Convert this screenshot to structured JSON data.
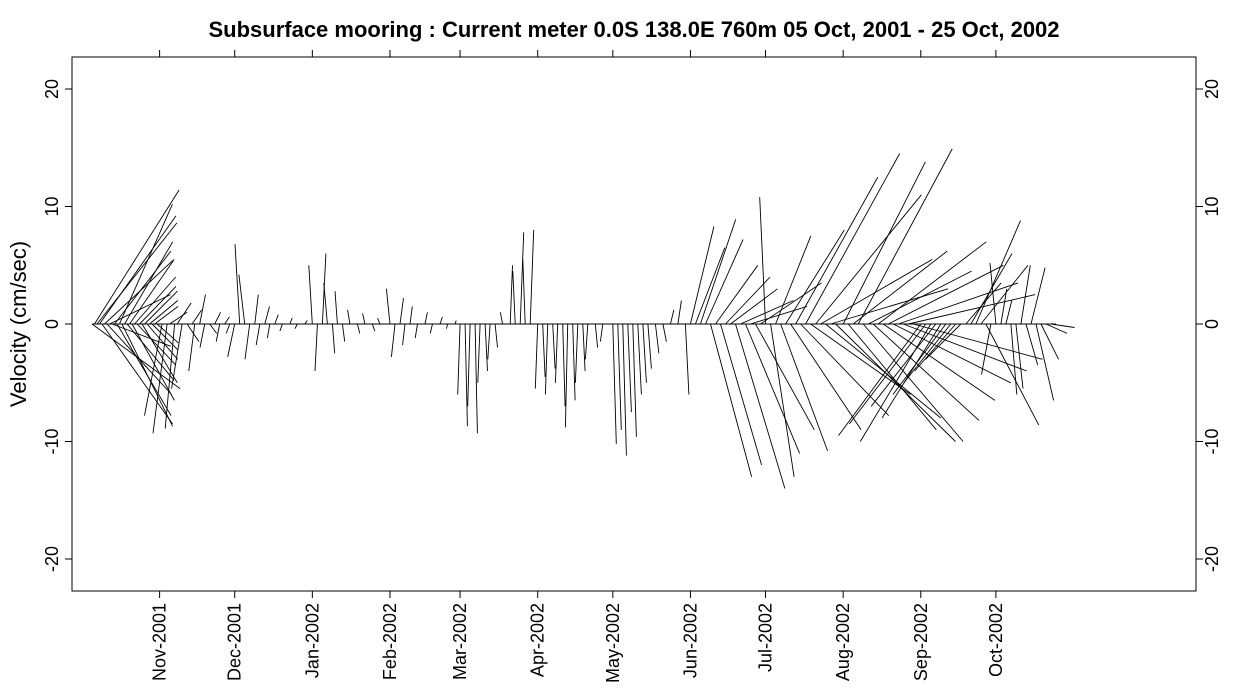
{
  "chart_data": {
    "type": "stick-vector",
    "title": "Subsurface mooring : Current meter  0.0S 138.0E   760m  05 Oct, 2001 - 25 Oct, 2002",
    "xlabel": "",
    "ylabel": "Velocity (cm/sec)",
    "x_range": [
      "2001-10-05",
      "2002-10-25"
    ],
    "ylim": [
      -22.8,
      22.8
    ],
    "y_ticks": [
      -20,
      -10,
      0,
      10,
      20
    ],
    "y_tick_labels": [
      "-20",
      "-10",
      "0",
      "10",
      "20"
    ],
    "x_ticks": [
      "2001-11-01",
      "2001-12-01",
      "2002-01-01",
      "2002-02-01",
      "2002-03-01",
      "2002-04-01",
      "2002-05-01",
      "2002-06-01",
      "2002-07-01",
      "2002-08-01",
      "2002-09-01",
      "2002-10-01"
    ],
    "x_tick_labels": [
      "Nov-2001",
      "Dec-2001",
      "Jan-2002",
      "Feb-2002",
      "Mar-2002",
      "Apr-2002",
      "May-2002",
      "Jun-2002",
      "Jul-2002",
      "Aug-2002",
      "Sep-2002",
      "Oct-2002"
    ],
    "grid": false,
    "legend": "none",
    "line_color": "#000000",
    "sticks": [
      {
        "date": "2001-10-05",
        "u": 7.5,
        "v": -5.5
      },
      {
        "date": "2001-10-06",
        "u": 7.2,
        "v": 11.4
      },
      {
        "date": "2001-10-07",
        "u": 6.8,
        "v": 8.6
      },
      {
        "date": "2001-10-08",
        "u": 6.5,
        "v": 9.2
      },
      {
        "date": "2001-10-09",
        "u": 6.0,
        "v": -8.5
      },
      {
        "date": "2001-10-10",
        "u": 5.8,
        "v": 5.4
      },
      {
        "date": "2001-10-11",
        "u": 5.5,
        "v": -6.0
      },
      {
        "date": "2001-10-12",
        "u": 5.2,
        "v": 2.5
      },
      {
        "date": "2001-10-13",
        "u": 5.0,
        "v": -1.9
      },
      {
        "date": "2001-10-14",
        "u": 4.8,
        "v": 6.2
      },
      {
        "date": "2001-10-15",
        "u": 4.6,
        "v": -7.8
      },
      {
        "date": "2001-10-16",
        "u": 4.5,
        "v": 10.2
      },
      {
        "date": "2001-10-17",
        "u": 4.3,
        "v": -8.7
      },
      {
        "date": "2001-10-18",
        "u": 4.1,
        "v": 7.0
      },
      {
        "date": "2001-10-19",
        "u": 4.0,
        "v": -4.8
      },
      {
        "date": "2001-10-20",
        "u": 3.8,
        "v": 5.5
      },
      {
        "date": "2001-10-21",
        "u": 3.6,
        "v": -6.5
      },
      {
        "date": "2001-10-22",
        "u": 3.5,
        "v": 4.0
      },
      {
        "date": "2001-10-23",
        "u": 3.3,
        "v": -3.5
      },
      {
        "date": "2001-10-24",
        "u": 3.1,
        "v": 3.2
      },
      {
        "date": "2001-10-25",
        "u": 3.0,
        "v": -5.0
      },
      {
        "date": "2001-10-26",
        "u": 2.8,
        "v": 2.8
      },
      {
        "date": "2001-10-27",
        "u": 2.6,
        "v": -3.0
      },
      {
        "date": "2001-10-28",
        "u": 2.4,
        "v": 2.0
      },
      {
        "date": "2001-10-29",
        "u": 2.2,
        "v": -2.2
      },
      {
        "date": "2001-10-30",
        "u": 2.0,
        "v": 1.5
      },
      {
        "date": "2001-10-31",
        "u": 1.8,
        "v": -1.6
      },
      {
        "date": "2001-11-02",
        "u": -1.5,
        "v": -7.8
      },
      {
        "date": "2001-11-04",
        "u": -1.2,
        "v": -9.3
      },
      {
        "date": "2001-11-05",
        "u": 1.5,
        "v": 1.0
      },
      {
        "date": "2001-11-07",
        "u": -0.8,
        "v": -8.9
      },
      {
        "date": "2001-11-08",
        "u": 1.2,
        "v": 1.8
      },
      {
        "date": "2001-11-10",
        "u": -0.9,
        "v": -5.5
      },
      {
        "date": "2001-11-12",
        "u": 1.0,
        "v": -1.5
      },
      {
        "date": "2001-11-14",
        "u": 0.8,
        "v": 1.2
      },
      {
        "date": "2001-11-15",
        "u": -0.5,
        "v": -4.0
      },
      {
        "date": "2001-11-17",
        "u": 0.5,
        "v": 2.5
      },
      {
        "date": "2001-11-19",
        "u": -0.4,
        "v": -2.0
      },
      {
        "date": "2001-11-21",
        "u": 0.6,
        "v": -0.8
      },
      {
        "date": "2001-11-23",
        "u": 0.5,
        "v": 1.0
      },
      {
        "date": "2001-11-25",
        "u": -0.3,
        "v": -1.5
      },
      {
        "date": "2001-11-27",
        "u": 0.4,
        "v": 0.6
      },
      {
        "date": "2001-11-29",
        "u": -0.3,
        "v": -0.8
      },
      {
        "date": "2001-12-01",
        "u": -0.6,
        "v": -2.8
      },
      {
        "date": "2001-12-03",
        "u": -0.4,
        "v": 6.8
      },
      {
        "date": "2001-12-05",
        "u": -0.5,
        "v": 4.2
      },
      {
        "date": "2001-12-07",
        "u": -0.4,
        "v": -3.0
      },
      {
        "date": "2001-12-09",
        "u": 0.3,
        "v": 2.5
      },
      {
        "date": "2001-12-11",
        "u": -0.3,
        "v": -1.8
      },
      {
        "date": "2001-12-13",
        "u": 0.4,
        "v": 1.5
      },
      {
        "date": "2001-12-15",
        "u": -0.2,
        "v": -1.2
      },
      {
        "date": "2001-12-17",
        "u": 0.3,
        "v": 0.8
      },
      {
        "date": "2001-12-20",
        "u": -0.2,
        "v": -0.6
      },
      {
        "date": "2001-12-23",
        "u": 0.2,
        "v": 0.5
      },
      {
        "date": "2001-12-26",
        "u": -0.2,
        "v": -0.4
      },
      {
        "date": "2001-12-29",
        "u": 0.2,
        "v": 0.3
      },
      {
        "date": "2002-01-01",
        "u": -0.3,
        "v": 5.0
      },
      {
        "date": "2002-01-03",
        "u": -0.2,
        "v": -4.0
      },
      {
        "date": "2002-01-05",
        "u": 0.3,
        "v": 6.0
      },
      {
        "date": "2002-01-07",
        "u": -0.3,
        "v": 3.5
      },
      {
        "date": "2002-01-09",
        "u": 0.2,
        "v": -2.5
      },
      {
        "date": "2002-01-11",
        "u": -0.2,
        "v": 2.8
      },
      {
        "date": "2002-01-13",
        "u": 0.2,
        "v": -1.5
      },
      {
        "date": "2002-01-16",
        "u": -0.2,
        "v": 1.2
      },
      {
        "date": "2002-01-19",
        "u": 0.2,
        "v": -0.8
      },
      {
        "date": "2002-01-22",
        "u": -0.2,
        "v": 0.9
      },
      {
        "date": "2002-01-25",
        "u": 0.2,
        "v": -0.6
      },
      {
        "date": "2002-01-28",
        "u": -0.2,
        "v": 0.5
      },
      {
        "date": "2002-02-01",
        "u": -0.3,
        "v": 3.0
      },
      {
        "date": "2002-02-03",
        "u": -0.3,
        "v": -2.8
      },
      {
        "date": "2002-02-05",
        "u": 0.3,
        "v": 2.2
      },
      {
        "date": "2002-02-07",
        "u": -0.2,
        "v": -1.8
      },
      {
        "date": "2002-02-09",
        "u": 0.2,
        "v": 1.5
      },
      {
        "date": "2002-02-12",
        "u": -0.2,
        "v": -1.2
      },
      {
        "date": "2002-02-15",
        "u": 0.2,
        "v": 1.0
      },
      {
        "date": "2002-02-18",
        "u": -0.2,
        "v": -0.8
      },
      {
        "date": "2002-02-21",
        "u": 0.2,
        "v": 0.6
      },
      {
        "date": "2002-02-24",
        "u": -0.1,
        "v": -0.4
      },
      {
        "date": "2002-02-27",
        "u": 0.1,
        "v": 0.3
      },
      {
        "date": "2002-03-01",
        "u": -0.2,
        "v": -6.0
      },
      {
        "date": "2002-03-03",
        "u": 0.2,
        "v": -8.7
      },
      {
        "date": "2002-03-05",
        "u": -0.2,
        "v": -7.0
      },
      {
        "date": "2002-03-07",
        "u": 0.2,
        "v": -9.3
      },
      {
        "date": "2002-03-09",
        "u": -0.2,
        "v": -5.0
      },
      {
        "date": "2002-03-11",
        "u": 0.2,
        "v": -4.0
      },
      {
        "date": "2002-03-13",
        "u": -0.2,
        "v": -3.0
      },
      {
        "date": "2002-03-15",
        "u": 0.2,
        "v": -2.0
      },
      {
        "date": "2002-03-18",
        "u": -0.2,
        "v": 1.0
      },
      {
        "date": "2002-03-21",
        "u": 0.2,
        "v": 5.0
      },
      {
        "date": "2002-03-23",
        "u": -0.2,
        "v": 4.5
      },
      {
        "date": "2002-03-25",
        "u": 0.3,
        "v": 7.8
      },
      {
        "date": "2002-03-27",
        "u": -0.2,
        "v": 5.5
      },
      {
        "date": "2002-03-29",
        "u": 0.3,
        "v": 8.0
      },
      {
        "date": "2002-04-01",
        "u": -0.2,
        "v": -5.5
      },
      {
        "date": "2002-04-03",
        "u": 0.2,
        "v": -4.5
      },
      {
        "date": "2002-04-05",
        "u": -0.2,
        "v": -6.0
      },
      {
        "date": "2002-04-07",
        "u": 0.2,
        "v": -3.8
      },
      {
        "date": "2002-04-09",
        "u": -0.2,
        "v": -5.0
      },
      {
        "date": "2002-04-11",
        "u": 0.2,
        "v": -7.0
      },
      {
        "date": "2002-04-13",
        "u": -0.2,
        "v": -8.8
      },
      {
        "date": "2002-04-15",
        "u": 0.2,
        "v": -6.5
      },
      {
        "date": "2002-04-17",
        "u": -0.2,
        "v": -5.0
      },
      {
        "date": "2002-04-19",
        "u": 0.2,
        "v": -4.0
      },
      {
        "date": "2002-04-21",
        "u": -0.2,
        "v": -3.0
      },
      {
        "date": "2002-04-24",
        "u": 0.2,
        "v": -2.0
      },
      {
        "date": "2002-04-27",
        "u": -0.2,
        "v": -1.5
      },
      {
        "date": "2002-05-01",
        "u": 0.3,
        "v": -10.2
      },
      {
        "date": "2002-05-03",
        "u": 0.3,
        "v": -9.0
      },
      {
        "date": "2002-05-05",
        "u": 0.3,
        "v": -11.2
      },
      {
        "date": "2002-05-07",
        "u": 0.3,
        "v": -7.5
      },
      {
        "date": "2002-05-09",
        "u": 0.3,
        "v": -9.6
      },
      {
        "date": "2002-05-11",
        "u": 0.3,
        "v": -6.0
      },
      {
        "date": "2002-05-13",
        "u": 0.3,
        "v": -5.0
      },
      {
        "date": "2002-05-15",
        "u": 0.3,
        "v": -3.8
      },
      {
        "date": "2002-05-18",
        "u": 0.3,
        "v": -2.5
      },
      {
        "date": "2002-05-21",
        "u": 0.3,
        "v": -1.5
      },
      {
        "date": "2002-05-24",
        "u": 0.3,
        "v": 1.2
      },
      {
        "date": "2002-05-27",
        "u": 0.3,
        "v": 2.0
      },
      {
        "date": "2002-05-30",
        "u": 0.3,
        "v": -6.0
      },
      {
        "date": "2002-06-01",
        "u": 2.0,
        "v": 8.3
      },
      {
        "date": "2002-06-03",
        "u": 2.5,
        "v": 6.5
      },
      {
        "date": "2002-06-05",
        "u": 3.0,
        "v": 8.9
      },
      {
        "date": "2002-06-07",
        "u": 3.2,
        "v": 7.2
      },
      {
        "date": "2002-06-09",
        "u": 3.5,
        "v": -13.0
      },
      {
        "date": "2002-06-11",
        "u": 3.6,
        "v": 5.0
      },
      {
        "date": "2002-06-13",
        "u": 3.5,
        "v": -12.0
      },
      {
        "date": "2002-06-15",
        "u": 3.8,
        "v": 4.0
      },
      {
        "date": "2002-06-17",
        "u": 4.0,
        "v": 3.0
      },
      {
        "date": "2002-06-19",
        "u": 4.2,
        "v": -14.0
      },
      {
        "date": "2002-06-21",
        "u": 4.5,
        "v": 2.0
      },
      {
        "date": "2002-06-23",
        "u": 4.6,
        "v": -11.0
      },
      {
        "date": "2002-06-25",
        "u": 4.8,
        "v": 1.5
      },
      {
        "date": "2002-06-27",
        "u": 5.0,
        "v": -9.0
      },
      {
        "date": "2002-06-29",
        "u": 5.2,
        "v": 3.5
      },
      {
        "date": "2002-07-01",
        "u": -0.5,
        "v": 10.8
      },
      {
        "date": "2002-07-03",
        "u": 2.0,
        "v": -13.0
      },
      {
        "date": "2002-07-05",
        "u": 3.0,
        "v": 7.5
      },
      {
        "date": "2002-07-07",
        "u": 4.0,
        "v": -10.8
      },
      {
        "date": "2002-07-09",
        "u": 5.0,
        "v": 8.0
      },
      {
        "date": "2002-07-11",
        "u": 6.0,
        "v": -9.0
      },
      {
        "date": "2002-07-13",
        "u": 7.0,
        "v": 12.5
      },
      {
        "date": "2002-07-15",
        "u": 7.5,
        "v": -7.8
      },
      {
        "date": "2002-07-17",
        "u": 8.0,
        "v": 14.5
      },
      {
        "date": "2002-07-19",
        "u": 8.5,
        "v": -6.0
      },
      {
        "date": "2002-07-21",
        "u": 9.0,
        "v": 11.0
      },
      {
        "date": "2002-07-23",
        "u": 9.5,
        "v": 5.5
      },
      {
        "date": "2002-07-25",
        "u": 9.8,
        "v": -8.0
      },
      {
        "date": "2002-07-27",
        "u": 10.0,
        "v": 3.0
      },
      {
        "date": "2002-07-29",
        "u": 10.2,
        "v": -10.0
      },
      {
        "date": "2002-08-01",
        "u": 7.0,
        "v": 13.8
      },
      {
        "date": "2002-08-03",
        "u": 7.5,
        "v": -9.0
      },
      {
        "date": "2002-08-05",
        "u": 8.0,
        "v": 6.2
      },
      {
        "date": "2002-08-07",
        "u": 8.0,
        "v": 14.9
      },
      {
        "date": "2002-08-09",
        "u": 8.5,
        "v": -10.0
      },
      {
        "date": "2002-08-11",
        "u": 8.8,
        "v": 4.5
      },
      {
        "date": "2002-08-13",
        "u": 9.0,
        "v": -8.2
      },
      {
        "date": "2002-08-15",
        "u": 9.2,
        "v": 7.0
      },
      {
        "date": "2002-08-17",
        "u": 9.5,
        "v": -6.5
      },
      {
        "date": "2002-08-19",
        "u": 9.8,
        "v": 5.0
      },
      {
        "date": "2002-08-21",
        "u": 10.0,
        "v": -5.0
      },
      {
        "date": "2002-08-23",
        "u": 10.2,
        "v": 3.5
      },
      {
        "date": "2002-08-25",
        "u": 10.5,
        "v": -4.0
      },
      {
        "date": "2002-08-27",
        "u": 10.8,
        "v": 2.5
      },
      {
        "date": "2002-08-29",
        "u": 11.0,
        "v": -3.0
      },
      {
        "date": "2002-09-01",
        "u": -7.0,
        "v": -9.5
      },
      {
        "date": "2002-09-03",
        "u": -6.5,
        "v": -8.5
      },
      {
        "date": "2002-09-05",
        "u": -6.0,
        "v": -10.0
      },
      {
        "date": "2002-09-07",
        "u": -5.5,
        "v": -7.0
      },
      {
        "date": "2002-09-09",
        "u": -5.0,
        "v": -8.0
      },
      {
        "date": "2002-09-11",
        "u": -4.5,
        "v": -6.0
      },
      {
        "date": "2002-09-13",
        "u": -4.0,
        "v": -5.0
      },
      {
        "date": "2002-09-15",
        "u": -3.5,
        "v": -4.0
      },
      {
        "date": "2002-09-17",
        "u": -3.0,
        "v": -3.0
      },
      {
        "date": "2002-09-19",
        "u": 3.0,
        "v": 3.5
      },
      {
        "date": "2002-09-21",
        "u": 3.5,
        "v": 6.0
      },
      {
        "date": "2002-09-23",
        "u": 3.8,
        "v": 8.8
      },
      {
        "date": "2002-09-25",
        "u": 4.0,
        "v": 5.0
      },
      {
        "date": "2002-09-27",
        "u": 4.5,
        "v": -8.6
      },
      {
        "date": "2002-09-29",
        "u": -0.8,
        "v": -4.3
      },
      {
        "date": "2002-10-01",
        "u": -0.5,
        "v": 5.2
      },
      {
        "date": "2002-10-03",
        "u": 0.5,
        "v": 3.0
      },
      {
        "date": "2002-10-05",
        "u": 0.5,
        "v": 2.0
      },
      {
        "date": "2002-10-07",
        "u": 0.5,
        "v": -6.0
      },
      {
        "date": "2002-10-09",
        "u": 0.6,
        "v": -5.5
      },
      {
        "date": "2002-10-11",
        "u": 0.8,
        "v": 5.0
      },
      {
        "date": "2002-10-13",
        "u": 1.0,
        "v": -3.5
      },
      {
        "date": "2002-10-15",
        "u": 1.2,
        "v": 4.8
      },
      {
        "date": "2002-10-17",
        "u": 1.5,
        "v": -6.5
      },
      {
        "date": "2002-10-19",
        "u": 1.5,
        "v": -3.0
      },
      {
        "date": "2002-10-21",
        "u": 1.8,
        "v": -0.8
      },
      {
        "date": "2002-10-23",
        "u": 2.0,
        "v": -0.3
      }
    ]
  }
}
